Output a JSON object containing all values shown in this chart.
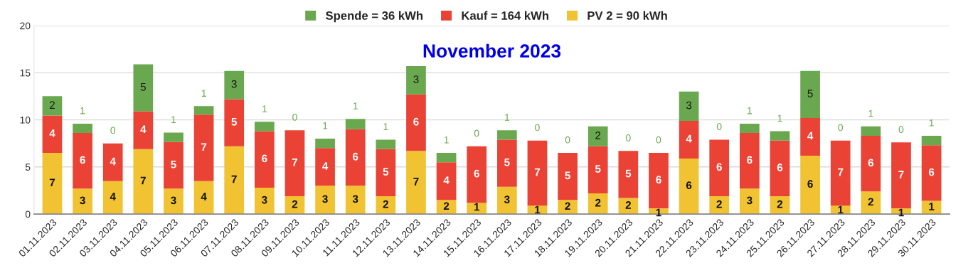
{
  "chart_data": {
    "type": "bar",
    "title": "November 2023",
    "stacked": true,
    "legend": "top",
    "grid": "y",
    "categories": [
      "01.11.2023",
      "02.11.2023",
      "03.11.2023",
      "04.11.2023",
      "05.11.2023",
      "06.11.2023",
      "07.11.2023",
      "08.11.2023",
      "09.11.2023",
      "10.11.2023",
      "11.11.2023",
      "12.11.2023",
      "13.11.2023",
      "14.11.2023",
      "15.11.2023",
      "16.11.2023",
      "17.11.2023",
      "18.11.2023",
      "19.11.2023",
      "20.11.2023",
      "21.11.2023",
      "22.11.2023",
      "23.11.2023",
      "24.11.2023",
      "25.11.2023",
      "26.11.2023",
      "27.11.2023",
      "28.11.2023",
      "29.11.2023",
      "30.11.2023"
    ],
    "ylim": [
      0,
      20
    ],
    "yticks": [
      0,
      5,
      10,
      15,
      20
    ],
    "series": [
      {
        "name": "PV 2 = 90 kWh",
        "color": "#f1c232",
        "values": [
          6.5,
          2.7,
          3.5,
          6.9,
          2.7,
          3.5,
          7.2,
          2.8,
          1.9,
          3.0,
          3.0,
          1.9,
          6.7,
          1.5,
          1.2,
          2.9,
          0.9,
          1.5,
          2.2,
          1.7,
          0.6,
          5.9,
          1.9,
          2.7,
          1.9,
          6.2,
          0.9,
          2.4,
          0.6,
          1.4
        ],
        "value_labels": [
          "7",
          "3",
          "4",
          "7",
          "3",
          "4",
          "7",
          "3",
          "2",
          "3",
          "3",
          "2",
          "7",
          "2",
          "1",
          "3",
          "1",
          "2",
          "2",
          "2",
          "1",
          "6",
          "2",
          "3",
          "2",
          "6",
          "1",
          "2",
          "1",
          "1"
        ]
      },
      {
        "name": "Kauf = 164 kWh",
        "color": "#ea4335",
        "values": [
          3.95,
          5.9,
          4.0,
          4.0,
          4.95,
          7.05,
          5.0,
          6.0,
          7.0,
          4.0,
          6.0,
          5.0,
          6.0,
          4.0,
          6.0,
          5.0,
          6.9,
          5.0,
          5.0,
          5.0,
          5.9,
          4.0,
          6.0,
          5.9,
          5.9,
          4.0,
          6.9,
          5.9,
          7.0,
          5.9
        ],
        "value_labels": [
          "4",
          "6",
          "4",
          "4",
          "5",
          "7",
          "5",
          "6",
          "7",
          "4",
          "6",
          "5",
          "6",
          "4",
          "6",
          "5",
          "7",
          "5",
          "5",
          "5",
          "6",
          "4",
          "6",
          "6",
          "6",
          "4",
          "7",
          "6",
          "7",
          "6"
        ]
      },
      {
        "name": "Spende = 36 kWh",
        "color": "#6aa84f",
        "values": [
          2.06,
          1.0,
          0,
          5.0,
          1.0,
          0.9,
          3.0,
          1.0,
          0,
          1.0,
          1.1,
          1.0,
          3.0,
          1.0,
          0,
          1.0,
          0,
          0,
          2.1,
          0,
          0,
          3.1,
          0,
          1.0,
          1.0,
          5.0,
          0,
          1.0,
          0,
          1.0
        ],
        "value_labels": [
          "2",
          "1",
          "0",
          "5",
          "1",
          "1",
          "3",
          "1",
          "0",
          "1",
          "1",
          "1",
          "3",
          "1",
          "0",
          "1",
          "0",
          "0",
          "2",
          "0",
          "0",
          "3",
          "0",
          "1",
          "1",
          "5",
          "0",
          "1",
          "0",
          "1"
        ]
      }
    ]
  }
}
